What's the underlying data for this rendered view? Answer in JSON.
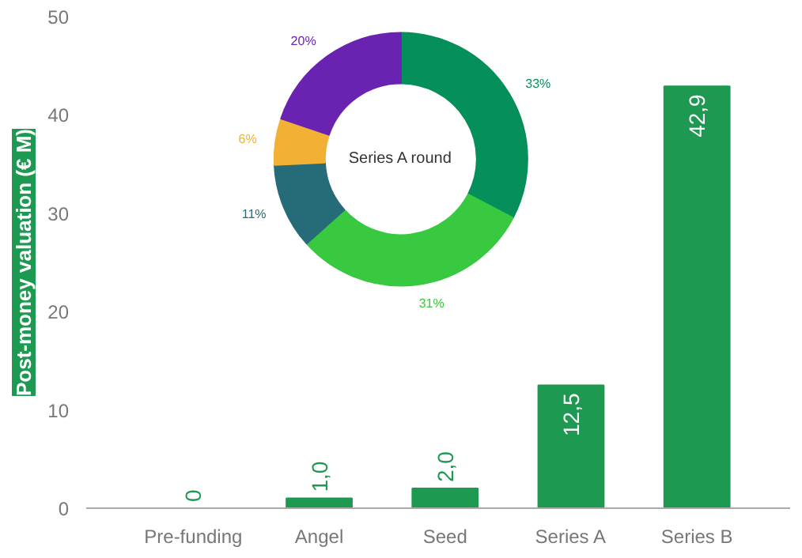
{
  "chart_data": [
    {
      "type": "bar",
      "ylabel": "Post-money valuation (€ M)",
      "categories": [
        "Pre-funding",
        "Angel",
        "Seed",
        "Series A",
        "Series B"
      ],
      "values": [
        0,
        1.0,
        2.0,
        12.5,
        42.9
      ],
      "value_labels": [
        "0",
        "1,0",
        "2,0",
        "12,5",
        "42,9"
      ],
      "color": "#1e9952",
      "ylim": [
        0,
        50
      ],
      "yticks": [
        0,
        10,
        20,
        30,
        40,
        50
      ]
    },
    {
      "type": "donut",
      "title": "Series A round",
      "categories": [
        null,
        null,
        null,
        null,
        null
      ],
      "values": [
        33,
        31,
        11,
        6,
        20
      ],
      "value_labels": [
        "33%",
        "31%",
        "11%",
        "6%",
        "20%"
      ],
      "colors": [
        "#058f5a",
        "#38c940",
        "#266b78",
        "#f2b134",
        "#6a23b0"
      ]
    }
  ]
}
